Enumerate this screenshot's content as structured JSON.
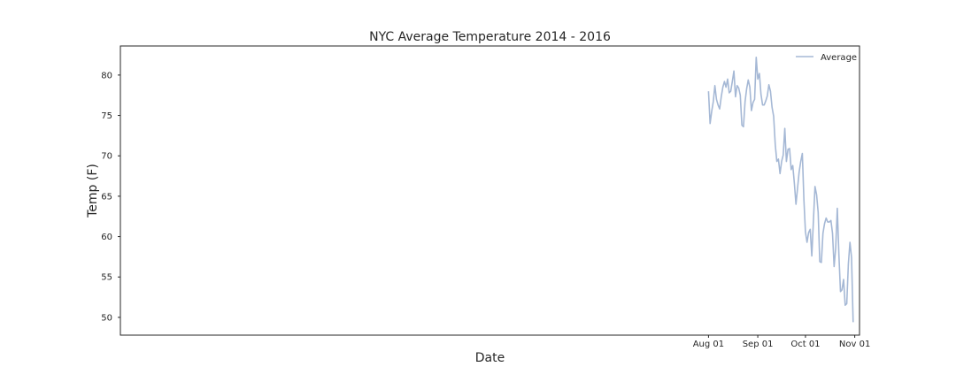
{
  "chart_data": {
    "type": "line",
    "title": "NYC Average Temperature 2014 - 2016",
    "xlabel": "Date",
    "ylabel": "Temp (F)",
    "x_start": "2016-08-01",
    "x_end": "2016-10-31",
    "xlim": [
      "2015-07-28",
      "2016-11-04"
    ],
    "ylim": [
      47.8,
      83.6
    ],
    "x_ticks": [
      {
        "date": "2016-08-01",
        "label": "Aug 01"
      },
      {
        "date": "2016-09-01",
        "label": "Sep 01"
      },
      {
        "date": "2016-10-01",
        "label": "Oct 01"
      },
      {
        "date": "2016-11-01",
        "label": "Nov 01"
      }
    ],
    "y_ticks": [
      50,
      55,
      60,
      65,
      70,
      75,
      80
    ],
    "grid": false,
    "legend_position": "top-right",
    "series": [
      {
        "name": "Average",
        "color": "#a5b8d5",
        "values": [
          78.0,
          74.0,
          75.5,
          76.7,
          78.7,
          77.0,
          76.3,
          75.8,
          77.3,
          78.5,
          79.2,
          78.5,
          79.5,
          77.8,
          78.0,
          79.2,
          80.5,
          77.3,
          78.7,
          78.4,
          77.5,
          73.8,
          73.6,
          76.7,
          78.3,
          79.4,
          78.5,
          75.6,
          76.6,
          77.0,
          82.2,
          79.5,
          80.2,
          77.6,
          76.3,
          76.3,
          76.8,
          77.4,
          78.8,
          78.0,
          76.0,
          74.9,
          71.4,
          69.3,
          69.6,
          67.8,
          69.3,
          70.1,
          73.4,
          69.3,
          70.8,
          70.9,
          68.3,
          68.8,
          66.6,
          64.0,
          66.0,
          68.0,
          69.3,
          70.3,
          64.5,
          60.6,
          59.3,
          60.5,
          60.9,
          57.6,
          61.9,
          66.2,
          65.2,
          63.0,
          56.9,
          56.8,
          60.4,
          61.6,
          62.3,
          61.8,
          61.8,
          62.0,
          60.4,
          56.3,
          58.6,
          63.5,
          57.8,
          53.2,
          53.4,
          54.7,
          51.5,
          51.7,
          56.6,
          59.3,
          57.4,
          49.4
        ]
      }
    ]
  }
}
